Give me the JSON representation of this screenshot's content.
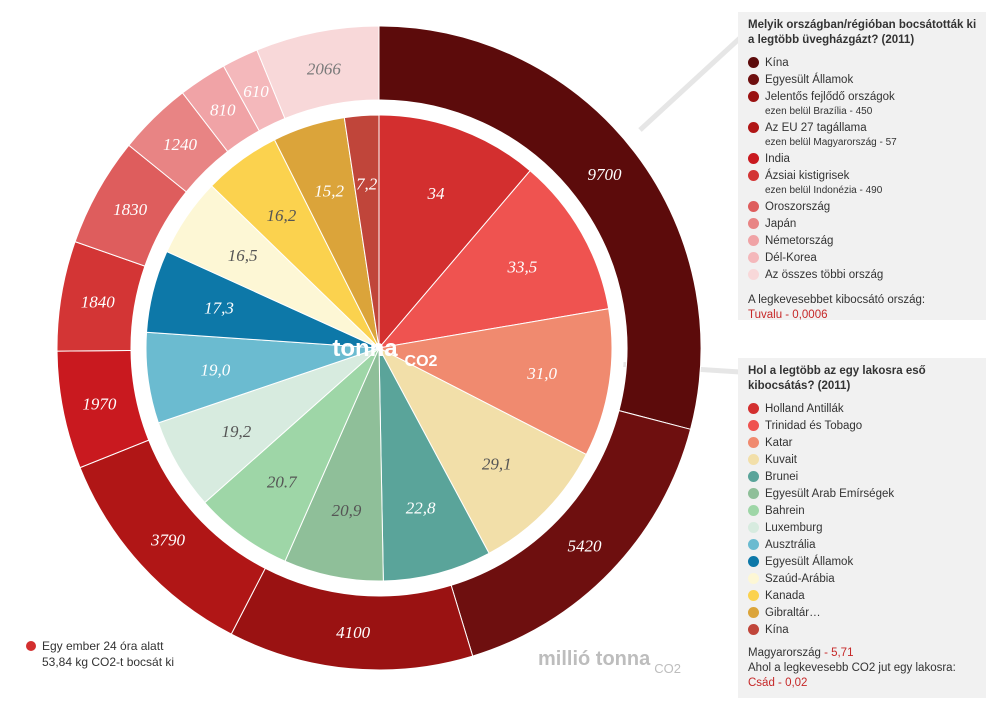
{
  "chart_data": [
    {
      "type": "pie",
      "ring": "outer",
      "unit_label": "millió tonna",
      "unit_sub": "CO2",
      "values": [
        9700,
        5420,
        4100,
        3790,
        1970,
        1840,
        1830,
        1240,
        810,
        610,
        2066
      ],
      "labels": [
        "9700",
        "5420",
        "4100",
        "3790",
        "1970",
        "1840",
        "1830",
        "1240",
        "810",
        "610",
        "2066"
      ],
      "colors": [
        "#5c0b0b",
        "#6e0f0f",
        "#9a1212",
        "#b01616",
        "#c9191f",
        "#d33535",
        "#de5d5d",
        "#e88484",
        "#f0a3a6",
        "#f4b8bb",
        "#f8d8d9"
      ],
      "label_colors": [
        "#ffffff",
        "#ffffff",
        "#ffffff",
        "#ffffff",
        "#ffffff",
        "#ffffff",
        "#ffffff",
        "#ffffff",
        "#ffffff",
        "#ffffff",
        "#7a7a7a"
      ]
    },
    {
      "type": "pie",
      "ring": "inner",
      "center_label": "tonna",
      "center_sub": "CO2",
      "values": [
        34,
        33.5,
        31.0,
        29.1,
        22.8,
        20.9,
        20.7,
        19.2,
        19.0,
        17.3,
        16.5,
        16.2,
        15.2,
        7.2
      ],
      "labels": [
        "34",
        "33,5",
        "31,0",
        "29,1",
        "22,8",
        "20,9",
        "20.7",
        "19,2",
        "19,0",
        "17,3",
        "16,5",
        "16,2",
        "15,2",
        "7,2"
      ],
      "colors": [
        "#d32f2f",
        "#ef5350",
        "#f08a6f",
        "#f2dfa9",
        "#5aa49a",
        "#8fbf99",
        "#9ed6a7",
        "#d7ebdf",
        "#6bbbd0",
        "#0d78a8",
        "#fdf7d5",
        "#fbd24e",
        "#dba43a",
        "#c0453a"
      ],
      "label_colors": [
        "#ffffff",
        "#ffffff",
        "#ffffff",
        "#555555",
        "#ffffff",
        "#555555",
        "#555555",
        "#555555",
        "#ffffff",
        "#ffffff",
        "#555555",
        "#555555",
        "#ffffff",
        "#ffffff"
      ]
    }
  ],
  "legend_top": {
    "title": "Melyik országban/régióban bocsátották ki a legtöbb üvegházgázt? (2011)",
    "items": [
      {
        "label": "Kína",
        "color": "#5c0b0b"
      },
      {
        "label": "Egyesült Államok",
        "color": "#6e0f0f"
      },
      {
        "label": "Jelentős fejlődő országok",
        "color": "#9a1212",
        "sub": "ezen belül Brazília - 450"
      },
      {
        "label": "Az EU 27 tagállama",
        "color": "#b01616",
        "sub": "ezen belül Magyarország - 57"
      },
      {
        "label": "India",
        "color": "#c9191f"
      },
      {
        "label": "Ázsiai kistigrisek",
        "color": "#d33535",
        "sub": "ezen belül Indonézia - 490"
      },
      {
        "label": "Oroszország",
        "color": "#de5d5d"
      },
      {
        "label": "Japán",
        "color": "#e88484"
      },
      {
        "label": "Németország",
        "color": "#f0a3a6"
      },
      {
        "label": "Dél-Korea",
        "color": "#f4b8bb"
      },
      {
        "label": "Az összes többi ország",
        "color": "#f8d8d9"
      }
    ],
    "note_label": "A legkevesebbet kibocsátó ország:",
    "note_value": "Tuvalu - 0,0006"
  },
  "legend_bottom": {
    "title": "Hol a legtöbb az egy lakosra eső kibocsátás? (2011)",
    "items": [
      {
        "label": "Holland Antillák",
        "color": "#d32f2f"
      },
      {
        "label": "Trinidad és Tobago",
        "color": "#ef5350"
      },
      {
        "label": "Katar",
        "color": "#f08a6f"
      },
      {
        "label": "Kuvait",
        "color": "#f2dfa9"
      },
      {
        "label": "Brunei",
        "color": "#5aa49a"
      },
      {
        "label": "Egyesült Arab Emírségek",
        "color": "#8fbf99"
      },
      {
        "label": "Bahrein",
        "color": "#9ed6a7"
      },
      {
        "label": "Luxemburg",
        "color": "#d7ebdf"
      },
      {
        "label": "Ausztrália",
        "color": "#6bbbd0"
      },
      {
        "label": "Egyesült Államok",
        "color": "#0d78a8"
      },
      {
        "label": "Szaúd-Arábia",
        "color": "#fdf7d5"
      },
      {
        "label": "Kanada",
        "color": "#fbd24e"
      },
      {
        "label": "Gibraltár…",
        "color": "#dba43a"
      },
      {
        "label": "Kína",
        "color": "#c0453a"
      }
    ],
    "note1_label": "Magyarország",
    "note1_value": " - 5,71",
    "note2_label": "Ahol a legkevesebb CO2 jut egy lakosra:",
    "note2_value": "Csád - 0,02"
  },
  "footnote": "Egy ember 24 óra alatt 53,84 kg CO2-t bocsát ki"
}
